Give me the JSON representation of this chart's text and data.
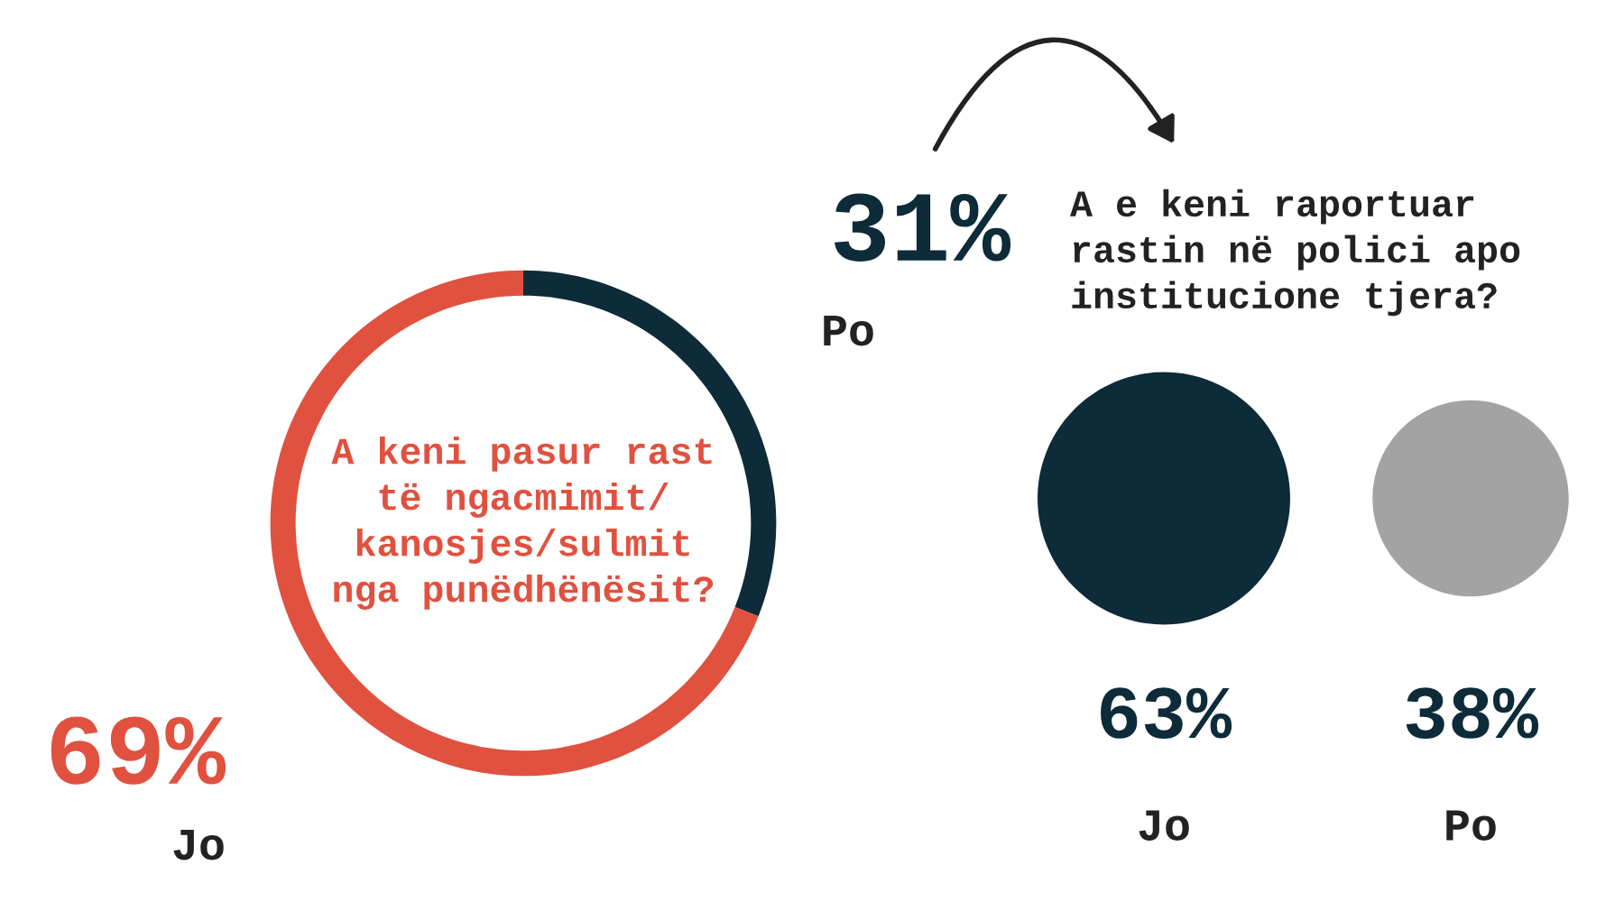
{
  "chart_data": [
    {
      "type": "donut",
      "title": "A keni pasur rast\ntë ngacmimit/\nkanosjes/sulmit\nnga punëdhënësit?",
      "categories": [
        "Po",
        "Jo"
      ],
      "values": [
        31,
        69
      ],
      "colors": [
        "#0d2b38",
        "#e0513f"
      ],
      "value_labels": [
        "31%",
        "69%"
      ]
    },
    {
      "type": "other",
      "title": "A e keni raportuar\nrastin në polici apo\ninstitucione tjera?",
      "categories": [
        "Jo",
        "Po"
      ],
      "values": [
        63,
        38
      ],
      "colors": [
        "#0d2b38",
        "#a3a3a3"
      ],
      "value_labels": [
        "63%",
        "38%"
      ]
    }
  ]
}
